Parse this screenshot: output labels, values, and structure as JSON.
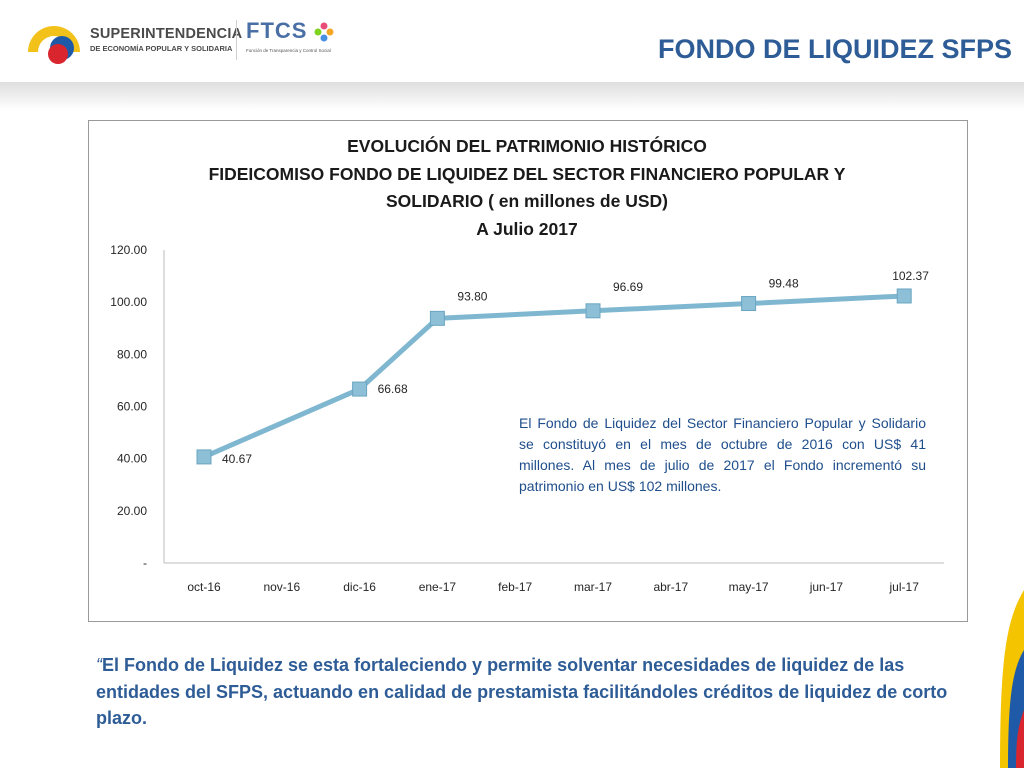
{
  "header": {
    "org_logo_line1": "SUPERINTENDENCIA",
    "org_logo_line2": "DE ECONOMÍA POPULAR Y SOLIDARIA",
    "ftcs_logo": "FTCS",
    "ftcs_subtitle": "Función de Transparencia y Control Social",
    "slide_title": "FONDO DE LIQUIDEZ SFPS"
  },
  "chart_data": {
    "type": "line",
    "title_lines": [
      "EVOLUCIÓN DEL PATRIMONIO HISTÓRICO",
      "FIDEICOMISO FONDO DE LIQUIDEZ DEL SECTOR FINANCIERO POPULAR Y",
      "SOLIDARIO ( en millones de USD)",
      "A Julio 2017"
    ],
    "categories": [
      "oct-16",
      "nov-16",
      "dic-16",
      "ene-17",
      "feb-17",
      "mar-17",
      "abr-17",
      "may-17",
      "jun-17",
      "jul-17"
    ],
    "points": [
      {
        "category": "oct-16",
        "value": 40.67,
        "label": "40.67"
      },
      {
        "category": "dic-16",
        "value": 66.68,
        "label": "66.68"
      },
      {
        "category": "ene-17",
        "value": 93.8,
        "label": "93.80"
      },
      {
        "category": "mar-17",
        "value": 96.69,
        "label": "96.69"
      },
      {
        "category": "may-17",
        "value": 99.48,
        "label": "99.48"
      },
      {
        "category": "jul-17",
        "value": 102.37,
        "label": "102.37"
      }
    ],
    "yticks": [
      {
        "value": 0,
        "label": "-"
      },
      {
        "value": 20,
        "label": "20.00"
      },
      {
        "value": 40,
        "label": "40.00"
      },
      {
        "value": 60,
        "label": "60.00"
      },
      {
        "value": 80,
        "label": "80.00"
      },
      {
        "value": 100,
        "label": "100.00"
      },
      {
        "value": 120,
        "label": "120.00"
      }
    ],
    "ylim": [
      0,
      120
    ],
    "grid": false,
    "series_color": "#7fb7d0",
    "marker_color": "#8dbfd6"
  },
  "annotation": "El Fondo de Liquidez del Sector Financiero Popular y Solidario se constituyó en el mes de octubre de 2016 con US$ 41 millones. Al mes de julio de 2017 el Fondo incrementó su patrimonio en US$ 102 millones.",
  "quote": {
    "open_mark": "“",
    "text": "El Fondo de Liquidez se esta fortaleciendo y permite  solventar necesidades de liquidez  de las entidades del SFPS, actuando en calidad de prestamista facilitándoles créditos de liquidez de corto plazo."
  },
  "colors": {
    "title_blue": "#2e5c96",
    "annotation_blue": "#1f4e8c",
    "flag_yellow": "#f5c400",
    "flag_blue": "#1f5aa8",
    "flag_red": "#d9262e"
  }
}
